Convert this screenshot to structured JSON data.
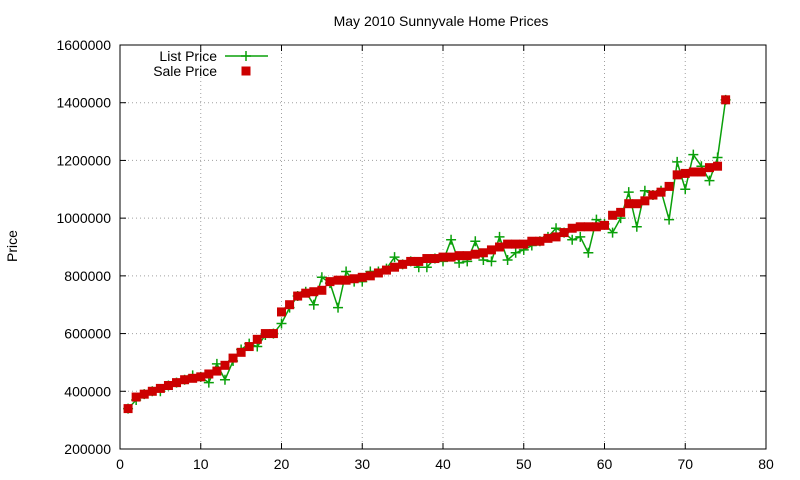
{
  "chart_data": {
    "type": "line",
    "title": "May 2010 Sunnyvale Home Prices",
    "xlabel": "",
    "ylabel": "Price",
    "xlim": [
      0,
      80
    ],
    "ylim": [
      200000,
      1600000
    ],
    "xticks": [
      0,
      10,
      20,
      30,
      40,
      50,
      60,
      70,
      80
    ],
    "yticks": [
      200000,
      400000,
      600000,
      800000,
      1000000,
      1200000,
      1400000,
      1600000
    ],
    "grid": true,
    "legend_position": "top-left",
    "series": [
      {
        "name": "List Price",
        "style": "line-with-plus-markers",
        "color": "#0aa00a",
        "x": [
          1,
          2,
          3,
          4,
          5,
          6,
          7,
          8,
          9,
          10,
          11,
          12,
          13,
          14,
          15,
          16,
          17,
          18,
          19,
          20,
          21,
          22,
          23,
          24,
          25,
          26,
          27,
          28,
          29,
          30,
          31,
          32,
          33,
          34,
          35,
          36,
          37,
          38,
          39,
          40,
          41,
          42,
          43,
          44,
          45,
          46,
          47,
          48,
          49,
          50,
          51,
          52,
          53,
          54,
          55,
          56,
          57,
          58,
          59,
          60,
          61,
          62,
          63,
          64,
          65,
          66,
          67,
          68,
          69,
          70,
          71,
          72,
          73,
          74,
          75
        ],
        "values": [
          340000,
          370000,
          390000,
          400000,
          400000,
          420000,
          430000,
          440000,
          455000,
          450000,
          430000,
          495000,
          440000,
          505000,
          545000,
          565000,
          555000,
          595000,
          600000,
          635000,
          690000,
          730000,
          745000,
          700000,
          795000,
          775000,
          690000,
          815000,
          780000,
          780000,
          815000,
          815000,
          825000,
          865000,
          840000,
          850000,
          830000,
          830000,
          860000,
          850000,
          925000,
          845000,
          850000,
          920000,
          855000,
          850000,
          935000,
          855000,
          880000,
          890000,
          905000,
          920000,
          935000,
          965000,
          950000,
          925000,
          935000,
          880000,
          995000,
          980000,
          950000,
          1000000,
          1090000,
          970000,
          1095000,
          1080000,
          1095000,
          995000,
          1195000,
          1100000,
          1220000,
          1180000,
          1130000,
          1210000,
          1410000
        ]
      },
      {
        "name": "Sale Price",
        "style": "square-markers",
        "color": "#cc0000",
        "x": [
          1,
          2,
          3,
          4,
          5,
          6,
          7,
          8,
          9,
          10,
          11,
          12,
          13,
          14,
          15,
          16,
          17,
          18,
          19,
          20,
          21,
          22,
          23,
          24,
          25,
          26,
          27,
          28,
          29,
          30,
          31,
          32,
          33,
          34,
          35,
          36,
          37,
          38,
          39,
          40,
          41,
          42,
          43,
          44,
          45,
          46,
          47,
          48,
          49,
          50,
          51,
          52,
          53,
          54,
          55,
          56,
          57,
          58,
          59,
          60,
          61,
          62,
          63,
          64,
          65,
          66,
          67,
          68,
          69,
          70,
          71,
          72,
          73,
          74,
          75
        ],
        "values": [
          340000,
          380000,
          390000,
          400000,
          410000,
          420000,
          430000,
          440000,
          445000,
          450000,
          460000,
          470000,
          490000,
          515000,
          535000,
          555000,
          580000,
          600000,
          600000,
          675000,
          700000,
          730000,
          740000,
          745000,
          750000,
          780000,
          785000,
          785000,
          790000,
          795000,
          800000,
          810000,
          820000,
          830000,
          840000,
          850000,
          850000,
          860000,
          860000,
          865000,
          865000,
          870000,
          870000,
          875000,
          880000,
          890000,
          900000,
          910000,
          910000,
          910000,
          920000,
          920000,
          930000,
          935000,
          950000,
          965000,
          970000,
          970000,
          970000,
          975000,
          1010000,
          1020000,
          1050000,
          1050000,
          1060000,
          1080000,
          1090000,
          1110000,
          1150000,
          1155000,
          1160000,
          1160000,
          1175000,
          1180000,
          1410000
        ]
      }
    ]
  }
}
